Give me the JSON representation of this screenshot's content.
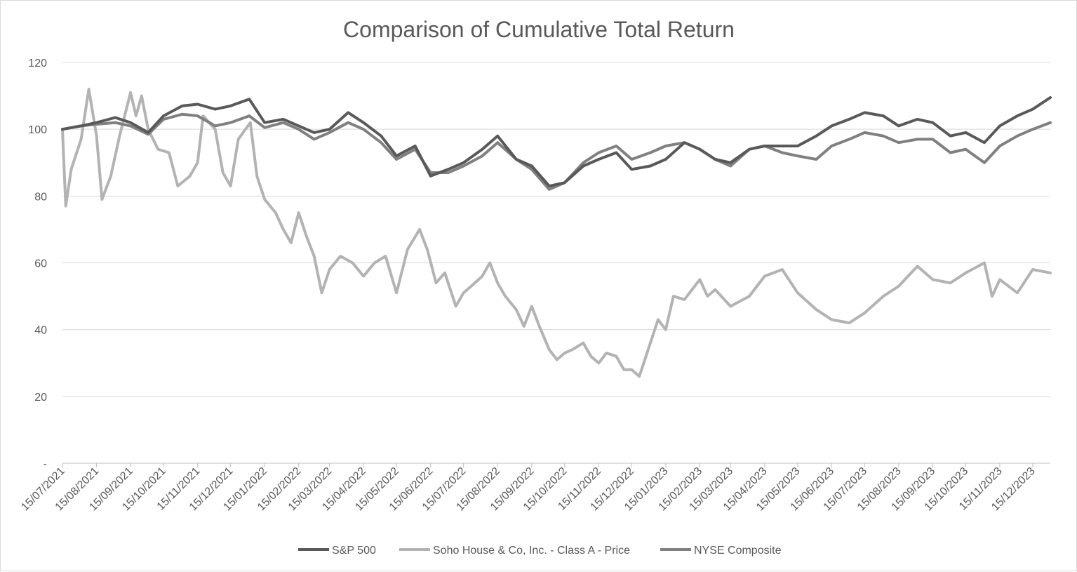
{
  "chart_data": {
    "type": "line",
    "title": "Comparison of Cumulative Total Return",
    "xlabel": "",
    "ylabel": "",
    "ylim": [
      0,
      120
    ],
    "y_ticks": [
      "-",
      "20",
      "40",
      "60",
      "80",
      "100",
      "120"
    ],
    "grid": true,
    "legend_position": "bottom",
    "x_tick_labels": [
      "15/07/2021",
      "15/08/2021",
      "15/09/2021",
      "15/10/2021",
      "15/11/2021",
      "15/12/2021",
      "15/01/2022",
      "15/02/2022",
      "15/03/2022",
      "15/04/2022",
      "15/05/2022",
      "15/06/2022",
      "15/07/2022",
      "15/08/2022",
      "15/09/2022",
      "15/10/2022",
      "15/11/2022",
      "15/12/2022",
      "15/01/2023",
      "15/02/2023",
      "15/03/2023",
      "15/04/2023",
      "15/05/2023",
      "15/06/2023",
      "15/07/2023",
      "15/08/2023",
      "15/09/2023",
      "15/10/2023",
      "15/11/2023",
      "15/12/2023"
    ],
    "x_end": "31/12/2023",
    "series": [
      {
        "name": "S&P 500",
        "color": "#595959",
        "points": [
          [
            "15/07/2021",
            100
          ],
          [
            "01/08/2021",
            101
          ],
          [
            "15/08/2021",
            102
          ],
          [
            "01/09/2021",
            103.5
          ],
          [
            "15/09/2021",
            102
          ],
          [
            "01/10/2021",
            99
          ],
          [
            "15/10/2021",
            104
          ],
          [
            "01/11/2021",
            107
          ],
          [
            "15/11/2021",
            107.5
          ],
          [
            "01/12/2021",
            106
          ],
          [
            "15/12/2021",
            107
          ],
          [
            "01/01/2022",
            109
          ],
          [
            "15/01/2022",
            102
          ],
          [
            "01/02/2022",
            103
          ],
          [
            "15/02/2022",
            101
          ],
          [
            "01/03/2022",
            99
          ],
          [
            "15/03/2022",
            100
          ],
          [
            "01/04/2022",
            105
          ],
          [
            "15/04/2022",
            102
          ],
          [
            "01/05/2022",
            98
          ],
          [
            "15/05/2022",
            92
          ],
          [
            "01/06/2022",
            95
          ],
          [
            "15/06/2022",
            86
          ],
          [
            "01/07/2022",
            88
          ],
          [
            "15/07/2022",
            90
          ],
          [
            "01/08/2022",
            94
          ],
          [
            "15/08/2022",
            98
          ],
          [
            "01/09/2022",
            91
          ],
          [
            "15/09/2022",
            89
          ],
          [
            "01/10/2022",
            83
          ],
          [
            "15/10/2022",
            84
          ],
          [
            "01/11/2022",
            89
          ],
          [
            "15/11/2022",
            91
          ],
          [
            "01/12/2022",
            93
          ],
          [
            "15/12/2022",
            88
          ],
          [
            "01/01/2023",
            89
          ],
          [
            "15/01/2023",
            91
          ],
          [
            "01/02/2023",
            96
          ],
          [
            "15/02/2023",
            94
          ],
          [
            "01/03/2023",
            91
          ],
          [
            "15/03/2023",
            90
          ],
          [
            "01/04/2023",
            94
          ],
          [
            "15/04/2023",
            95
          ],
          [
            "01/05/2023",
            95
          ],
          [
            "15/05/2023",
            95
          ],
          [
            "01/06/2023",
            98
          ],
          [
            "15/06/2023",
            101
          ],
          [
            "01/07/2023",
            103
          ],
          [
            "15/07/2023",
            105
          ],
          [
            "01/08/2023",
            104
          ],
          [
            "15/08/2023",
            101
          ],
          [
            "01/09/2023",
            103
          ],
          [
            "15/09/2023",
            102
          ],
          [
            "01/10/2023",
            98
          ],
          [
            "15/10/2023",
            99
          ],
          [
            "01/11/2023",
            96
          ],
          [
            "15/11/2023",
            101
          ],
          [
            "01/12/2023",
            104
          ],
          [
            "15/12/2023",
            106
          ],
          [
            "31/12/2023",
            109.5
          ]
        ]
      },
      {
        "name": "Soho House & Co, Inc. -  Class A - Price",
        "color": "#b3b3b3",
        "points": [
          [
            "15/07/2021",
            100
          ],
          [
            "18/07/2021",
            77
          ],
          [
            "23/07/2021",
            88
          ],
          [
            "01/08/2021",
            97
          ],
          [
            "08/08/2021",
            112
          ],
          [
            "15/08/2021",
            98
          ],
          [
            "20/08/2021",
            79
          ],
          [
            "28/08/2021",
            86
          ],
          [
            "05/09/2021",
            98
          ],
          [
            "15/09/2021",
            111
          ],
          [
            "20/09/2021",
            104
          ],
          [
            "25/09/2021",
            110
          ],
          [
            "01/10/2021",
            100
          ],
          [
            "10/10/2021",
            94
          ],
          [
            "20/10/2021",
            93
          ],
          [
            "28/10/2021",
            83
          ],
          [
            "08/11/2021",
            86
          ],
          [
            "15/11/2021",
            90
          ],
          [
            "20/11/2021",
            104
          ],
          [
            "01/12/2021",
            100
          ],
          [
            "08/12/2021",
            87
          ],
          [
            "15/12/2021",
            83
          ],
          [
            "22/12/2021",
            97
          ],
          [
            "02/01/2022",
            102
          ],
          [
            "08/01/2022",
            86
          ],
          [
            "15/01/2022",
            79
          ],
          [
            "25/01/2022",
            75
          ],
          [
            "01/02/2022",
            70
          ],
          [
            "08/02/2022",
            66
          ],
          [
            "15/02/2022",
            75
          ],
          [
            "22/02/2022",
            68
          ],
          [
            "01/03/2022",
            62
          ],
          [
            "08/03/2022",
            51
          ],
          [
            "15/03/2022",
            58
          ],
          [
            "25/03/2022",
            62
          ],
          [
            "05/04/2022",
            60
          ],
          [
            "15/04/2022",
            56
          ],
          [
            "25/04/2022",
            60
          ],
          [
            "05/05/2022",
            62
          ],
          [
            "15/05/2022",
            51
          ],
          [
            "25/05/2022",
            64
          ],
          [
            "05/06/2022",
            70
          ],
          [
            "12/06/2022",
            64
          ],
          [
            "20/06/2022",
            54
          ],
          [
            "28/06/2022",
            57
          ],
          [
            "08/07/2022",
            47
          ],
          [
            "15/07/2022",
            51
          ],
          [
            "22/07/2022",
            53
          ],
          [
            "01/08/2022",
            56
          ],
          [
            "08/08/2022",
            60
          ],
          [
            "15/08/2022",
            54
          ],
          [
            "22/08/2022",
            50
          ],
          [
            "01/09/2022",
            46
          ],
          [
            "08/09/2022",
            41
          ],
          [
            "15/09/2022",
            47
          ],
          [
            "22/09/2022",
            41
          ],
          [
            "01/10/2022",
            34
          ],
          [
            "08/10/2022",
            31
          ],
          [
            "15/10/2022",
            33
          ],
          [
            "22/10/2022",
            34
          ],
          [
            "01/11/2022",
            36
          ],
          [
            "08/11/2022",
            32
          ],
          [
            "15/11/2022",
            30
          ],
          [
            "22/11/2022",
            33
          ],
          [
            "01/12/2022",
            32
          ],
          [
            "08/12/2022",
            28
          ],
          [
            "15/12/2022",
            28
          ],
          [
            "22/12/2022",
            26
          ],
          [
            "01/01/2023",
            36
          ],
          [
            "08/01/2023",
            43
          ],
          [
            "15/01/2023",
            40
          ],
          [
            "22/01/2023",
            50
          ],
          [
            "01/02/2023",
            49
          ],
          [
            "08/02/2023",
            52
          ],
          [
            "15/02/2023",
            55
          ],
          [
            "22/02/2023",
            50
          ],
          [
            "01/03/2023",
            52
          ],
          [
            "15/03/2023",
            47
          ],
          [
            "01/04/2023",
            50
          ],
          [
            "15/04/2023",
            56
          ],
          [
            "01/05/2023",
            58
          ],
          [
            "15/05/2023",
            51
          ],
          [
            "01/06/2023",
            46
          ],
          [
            "15/06/2023",
            43
          ],
          [
            "01/07/2023",
            42
          ],
          [
            "15/07/2023",
            45
          ],
          [
            "01/08/2023",
            50
          ],
          [
            "15/08/2023",
            53
          ],
          [
            "01/09/2023",
            59
          ],
          [
            "15/09/2023",
            55
          ],
          [
            "01/10/2023",
            54
          ],
          [
            "15/10/2023",
            57
          ],
          [
            "01/11/2023",
            60
          ],
          [
            "08/11/2023",
            50
          ],
          [
            "15/11/2023",
            55
          ],
          [
            "01/12/2023",
            51
          ],
          [
            "15/12/2023",
            58
          ],
          [
            "31/12/2023",
            57
          ]
        ]
      },
      {
        "name": "NYSE Composite",
        "color": "#808080",
        "points": [
          [
            "15/07/2021",
            100
          ],
          [
            "01/08/2021",
            101
          ],
          [
            "15/08/2021",
            101.5
          ],
          [
            "01/09/2021",
            102
          ],
          [
            "15/09/2021",
            101
          ],
          [
            "01/10/2021",
            98.5
          ],
          [
            "15/10/2021",
            103
          ],
          [
            "01/11/2021",
            104.5
          ],
          [
            "15/11/2021",
            104
          ],
          [
            "01/12/2021",
            101
          ],
          [
            "15/12/2021",
            102
          ],
          [
            "01/01/2022",
            104
          ],
          [
            "15/01/2022",
            100.5
          ],
          [
            "01/02/2022",
            102
          ],
          [
            "15/02/2022",
            100
          ],
          [
            "01/03/2022",
            97
          ],
          [
            "15/03/2022",
            99
          ],
          [
            "01/04/2022",
            102
          ],
          [
            "15/04/2022",
            100
          ],
          [
            "01/05/2022",
            96
          ],
          [
            "15/05/2022",
            91
          ],
          [
            "01/06/2022",
            94
          ],
          [
            "15/06/2022",
            87
          ],
          [
            "01/07/2022",
            87
          ],
          [
            "15/07/2022",
            89
          ],
          [
            "01/08/2022",
            92
          ],
          [
            "15/08/2022",
            96
          ],
          [
            "01/09/2022",
            91
          ],
          [
            "15/09/2022",
            88
          ],
          [
            "01/10/2022",
            82
          ],
          [
            "15/10/2022",
            84
          ],
          [
            "01/11/2022",
            90
          ],
          [
            "15/11/2022",
            93
          ],
          [
            "01/12/2022",
            95
          ],
          [
            "15/12/2022",
            91
          ],
          [
            "01/01/2023",
            93
          ],
          [
            "15/01/2023",
            95
          ],
          [
            "01/02/2023",
            96
          ],
          [
            "15/02/2023",
            94
          ],
          [
            "01/03/2023",
            91
          ],
          [
            "15/03/2023",
            89
          ],
          [
            "01/04/2023",
            94
          ],
          [
            "15/04/2023",
            95
          ],
          [
            "01/05/2023",
            93
          ],
          [
            "15/05/2023",
            92
          ],
          [
            "01/06/2023",
            91
          ],
          [
            "15/06/2023",
            95
          ],
          [
            "01/07/2023",
            97
          ],
          [
            "15/07/2023",
            99
          ],
          [
            "01/08/2023",
            98
          ],
          [
            "15/08/2023",
            96
          ],
          [
            "01/09/2023",
            97
          ],
          [
            "15/09/2023",
            97
          ],
          [
            "01/10/2023",
            93
          ],
          [
            "15/10/2023",
            94
          ],
          [
            "01/11/2023",
            90
          ],
          [
            "15/11/2023",
            95
          ],
          [
            "01/12/2023",
            98
          ],
          [
            "15/12/2023",
            100
          ],
          [
            "31/12/2023",
            102
          ]
        ]
      }
    ]
  }
}
